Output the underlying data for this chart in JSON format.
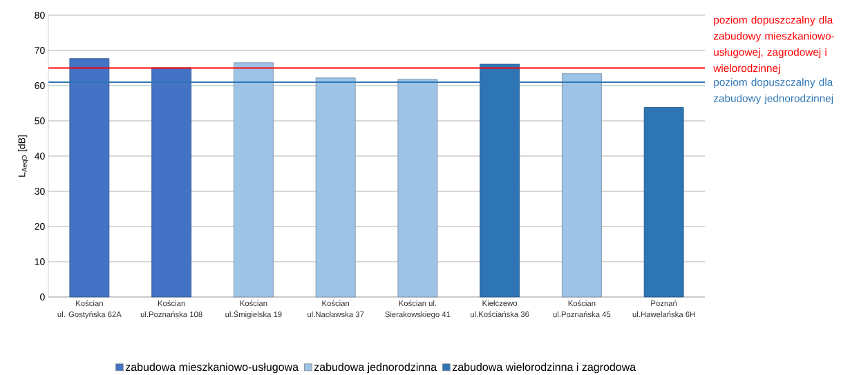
{
  "chart_data": {
    "type": "bar",
    "categories": [
      "Kościan\nul. Gostyńska 62A",
      "Kościan\nul.Poznańska 108",
      "Kościan\nul.Śmigielska 19",
      "Kościan\nul.Nacławska 37",
      "Kościan ul.\nSierakowskiego 41",
      "Kiełczewo\nul.Kościańska 36",
      "Kościan\nul.Poznańska 45",
      "Poznań\nul.Hawelańska 6H"
    ],
    "series": [
      {
        "name": "zabudowa mieszkaniowo-usługowa",
        "color": "#4472c4",
        "values": [
          67.7,
          65.1,
          null,
          null,
          null,
          null,
          null,
          null
        ]
      },
      {
        "name": "zabudowa jednorodzinna",
        "color": "#9dc3e6",
        "values": [
          null,
          null,
          66.5,
          62.2,
          61.8,
          null,
          63.4,
          null
        ]
      },
      {
        "name": "zabudowa wielorodzinna i zagrodowa",
        "color": "#2e75b6",
        "values": [
          null,
          null,
          null,
          null,
          null,
          66.1,
          null,
          53.8
        ]
      }
    ],
    "ylabel": "L$_{AeqD}$ [dB]",
    "ylim": [
      0,
      80
    ],
    "yticks": [
      0,
      10,
      20,
      30,
      40,
      50,
      60,
      70,
      80
    ],
    "grid": "y",
    "legend": "bottom",
    "ref_lines": [
      {
        "axis": "y",
        "value": 65,
        "label": "poziom dopuszczalny dla zabudowy mieszkaniowo-usługowej, zagrodowej i wielorodzinnej",
        "color": "#ff0000"
      },
      {
        "axis": "y",
        "value": 61,
        "label": "poziom dopuszczalny dla zabudowy jednorodzinnej",
        "color": "#2e75b6"
      }
    ]
  }
}
